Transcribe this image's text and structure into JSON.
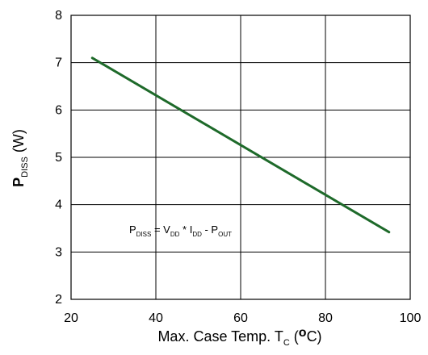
{
  "chart_data": {
    "type": "line",
    "x": [
      25,
      95
    ],
    "series": [
      {
        "values": [
          7.1,
          3.42
        ],
        "color": "#1e6a2a"
      }
    ],
    "xlim": [
      20,
      100
    ],
    "ylim": [
      2,
      8
    ],
    "xticks": [
      20,
      40,
      60,
      80,
      100
    ],
    "yticks": [
      2,
      3,
      4,
      5,
      6,
      7,
      8
    ],
    "grid": true,
    "xlabel": {
      "prefix": "Max. Case Temp. T",
      "subscript": "C",
      "middle": " (",
      "degree": "o",
      "suffix": "C)"
    },
    "ylabel": {
      "main": "P",
      "subscript": "DISS",
      "suffix": " (W)"
    },
    "annotation": {
      "p": "P",
      "p_sub": "DISS",
      "eq": " = V",
      "v_sub": "DD",
      "mult": " * I",
      "i_sub": "DD",
      "minus": " - P",
      "out_sub": "OUT"
    }
  }
}
